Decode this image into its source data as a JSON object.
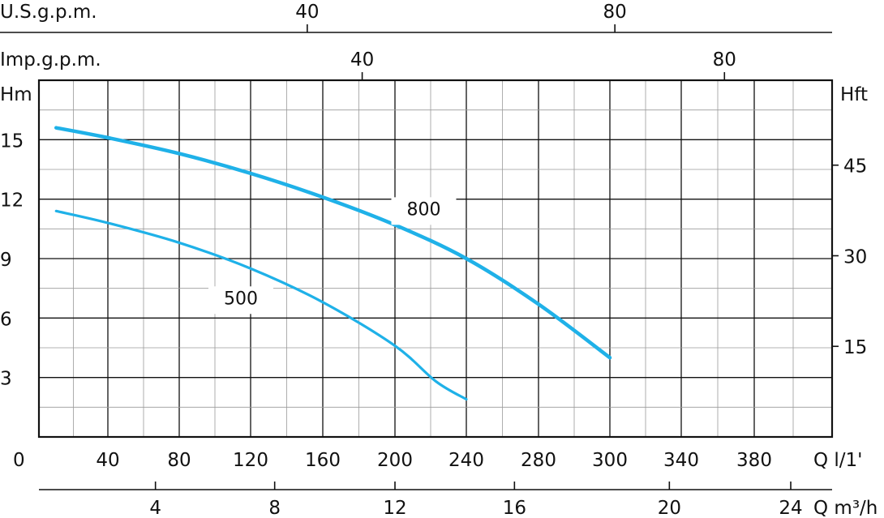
{
  "chart_data": {
    "type": "line",
    "colors": {
      "curve": "#1fb1e8",
      "grid": "#111111",
      "minor_grid": "#9a9a9a"
    },
    "left_axis": {
      "label": "Hm",
      "ticks": [
        3,
        6,
        9,
        12,
        15
      ],
      "range": [
        0,
        18
      ]
    },
    "right_axis": {
      "label": "Hft",
      "ticks": [
        15,
        30,
        45
      ]
    },
    "bottom_axis": {
      "label": "Q l/1'",
      "origin_label": "0",
      "ticks": [
        40,
        80,
        120,
        160,
        200,
        240,
        280,
        300,
        340,
        380
      ]
    },
    "m3h_axis": {
      "label": "Q m³/h",
      "ticks": [
        4,
        8,
        12,
        16,
        20,
        24
      ]
    },
    "usgpm_axis": {
      "label": "U.S.g.p.m.",
      "ticks": [
        40,
        80
      ]
    },
    "impgpm_axis": {
      "label": "Imp.g.p.m.",
      "ticks": [
        40,
        80
      ]
    },
    "series": [
      {
        "name": "800",
        "x": [
          10,
          40,
          80,
          120,
          160,
          200,
          240,
          280,
          300
        ],
        "y": [
          15.6,
          15.1,
          14.3,
          13.3,
          12.1,
          10.7,
          9.0,
          6.7,
          4.0
        ]
      },
      {
        "name": "500",
        "x": [
          10,
          40,
          80,
          120,
          160,
          200,
          223,
          240
        ],
        "y": [
          11.4,
          10.8,
          9.8,
          8.5,
          6.8,
          4.6,
          2.8,
          1.9
        ]
      }
    ]
  }
}
